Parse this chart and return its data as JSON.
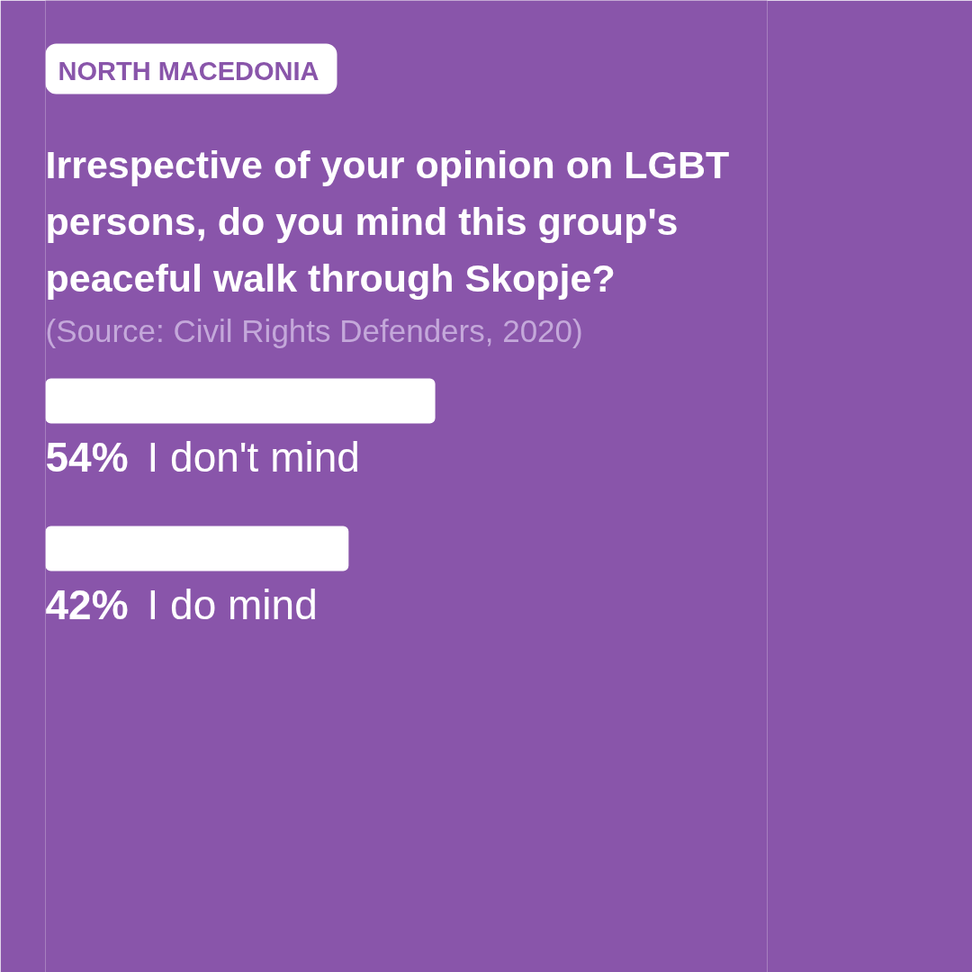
{
  "chart_data": {
    "type": "bar",
    "orientation": "horizontal",
    "subtitle": "NORTH MACEDONIA",
    "title": "Irrespective of your opinion on LGBT persons, do you mind this group's peaceful walk through Skopje?",
    "annotations": [
      "(Source: Civil Rights Defenders, 2020)"
    ],
    "categories": [
      "I don't mind",
      "I do mind"
    ],
    "values": [
      54,
      42
    ],
    "value_labels": [
      "54%",
      "42%"
    ],
    "color": "#ffffff",
    "xlim": [
      0,
      100
    ],
    "tick_labels": false,
    "grid": false
  }
}
